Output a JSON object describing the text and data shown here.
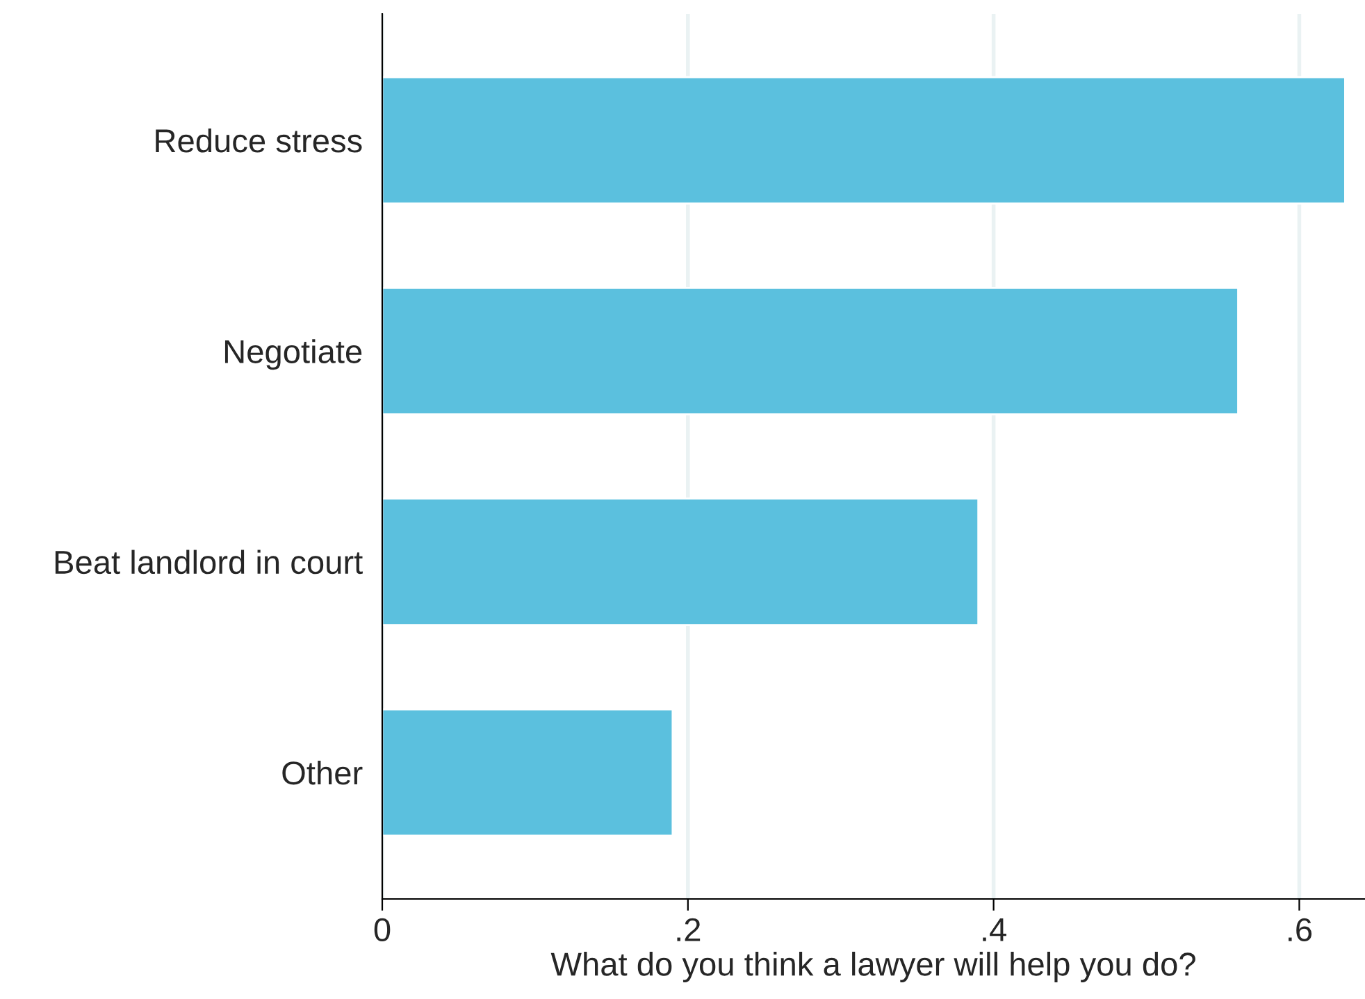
{
  "chart_data": {
    "type": "bar",
    "orientation": "horizontal",
    "xlabel": "What do you think a lawyer will help you do?",
    "categories": [
      "Reduce stress",
      "Negotiate",
      "Beat landlord in court",
      "Other"
    ],
    "values": [
      0.63,
      0.56,
      0.39,
      0.19
    ],
    "color": "#5bc0de",
    "xlim": [
      0,
      0.643
    ],
    "xticks": [
      0,
      {
        "value": 0.2,
        "label": ".2"
      },
      {
        "value": 0.4,
        "label": ".4"
      },
      {
        "value": 0.6,
        "label": ".6"
      }
    ],
    "grid": "x"
  }
}
